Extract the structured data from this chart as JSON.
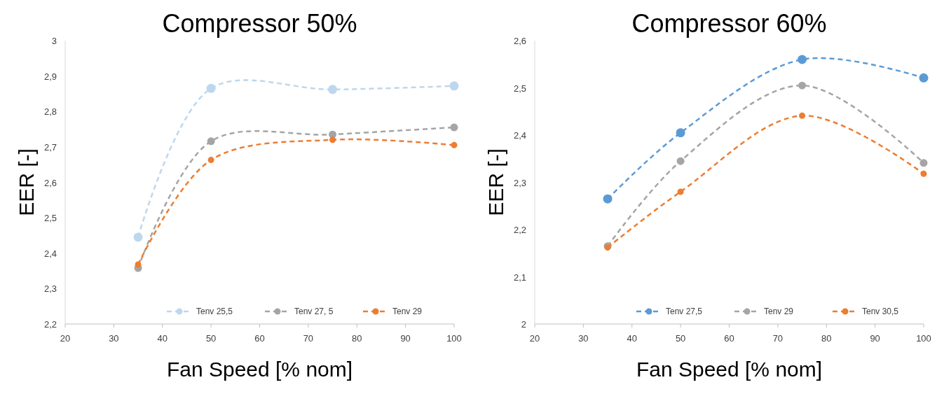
{
  "chart_data": [
    {
      "type": "line",
      "title": "Compressor  50%",
      "xlabel": "Fan Speed [% nom]",
      "ylabel": "EER [-]",
      "x": [
        35,
        50,
        75,
        100
      ],
      "series": [
        {
          "name": "Tenv 25,5",
          "color": "#bdd7ee",
          "values": [
            2.445,
            2.865,
            2.862,
            2.872
          ]
        },
        {
          "name": "Tenv 27, 5",
          "color": "#a5a5a5",
          "values": [
            2.358,
            2.716,
            2.735,
            2.755
          ]
        },
        {
          "name": "Tenv 29",
          "color": "#ed7d31",
          "values": [
            2.368,
            2.663,
            2.72,
            2.705
          ]
        }
      ],
      "xlim": [
        20,
        100
      ],
      "xticks": [
        20,
        30,
        40,
        50,
        60,
        70,
        80,
        90,
        100
      ],
      "ylim": [
        2.2,
        3
      ],
      "yticks": [
        {
          "value": 2.2,
          "label": "2,2"
        },
        {
          "value": 2.3,
          "label": "2,3"
        },
        {
          "value": 2.4,
          "label": "2,4"
        },
        {
          "value": 2.5,
          "label": "2,5"
        },
        {
          "value": 2.6,
          "label": "2,6"
        },
        {
          "value": 2.7,
          "label": "2,7"
        },
        {
          "value": 2.8,
          "label": "2,8"
        },
        {
          "value": 2.9,
          "label": "2,9"
        },
        3
      ],
      "grid": false,
      "legend": "bottom right",
      "marker": "circle",
      "line_style": "dashed"
    },
    {
      "type": "line",
      "title": "Compressor  60%",
      "xlabel": "Fan Speed [% nom]",
      "ylabel": "EER [-]",
      "x": [
        35,
        50,
        75,
        100
      ],
      "series": [
        {
          "name": "Tenv 27,5",
          "color": "#5b9bd5",
          "values": [
            2.265,
            2.405,
            2.56,
            2.521
          ]
        },
        {
          "name": "Tenv 29",
          "color": "#a5a5a5",
          "values": [
            2.165,
            2.345,
            2.505,
            2.341
          ]
        },
        {
          "name": "Tenv 30,5",
          "color": "#ed7d31",
          "values": [
            2.162,
            2.28,
            2.441,
            2.318
          ]
        }
      ],
      "xlim": [
        20,
        100
      ],
      "xticks": [
        20,
        30,
        40,
        50,
        60,
        70,
        80,
        90,
        100
      ],
      "ylim": [
        2,
        2.6
      ],
      "yticks": [
        2,
        {
          "value": 2.1,
          "label": "2,1"
        },
        {
          "value": 2.2,
          "label": "2,2"
        },
        {
          "value": 2.3,
          "label": "2,3"
        },
        {
          "value": 2.4,
          "label": "2,4"
        },
        {
          "value": 2.5,
          "label": "2,5"
        },
        {
          "value": 2.6,
          "label": "2,6"
        }
      ],
      "grid": false,
      "legend": "bottom right",
      "marker": "circle",
      "line_style": "dashed"
    }
  ]
}
